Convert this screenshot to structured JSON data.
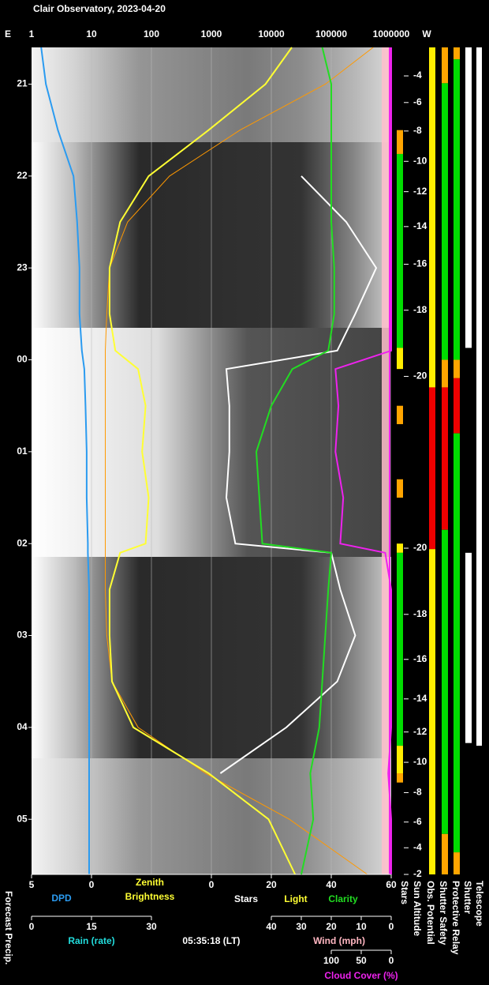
{
  "chart_data": {
    "type": "line",
    "title": "Clair Observatory, 2023-04-20",
    "edge_labels": [
      "E",
      "W"
    ],
    "time_label": "05:35:18 (LT)",
    "sun_altitude_label": "Sun Altitude",
    "precip_label": "Forecast Precip.",
    "xlim": [
      1,
      1000000
    ],
    "xticks": [
      1,
      10,
      100,
      1000,
      10000,
      100000,
      1000000
    ],
    "xlog": true,
    "grid": true,
    "ylim": [
      20.6,
      29.6
    ],
    "yticks": [
      21,
      22,
      23,
      {
        "value": 24,
        "label": "00"
      },
      {
        "value": 25,
        "label": "01"
      },
      {
        "value": 26,
        "label": "02"
      },
      {
        "value": 27,
        "label": "03"
      },
      {
        "value": 28,
        "label": "04"
      },
      {
        "value": 29,
        "label": "05"
      }
    ],
    "times": [
      20.6,
      21,
      21.5,
      22,
      22.5,
      23,
      23.5,
      23.9,
      24.1,
      24.5,
      25,
      25.5,
      26,
      26.1,
      26.5,
      27,
      27.5,
      28,
      28.5,
      29,
      29.6
    ],
    "series": [
      {
        "color": "#ff9900",
        "values": [
          500000,
          80000,
          3000,
          200,
          40,
          20,
          18,
          17,
          17,
          17,
          17,
          17,
          17,
          17,
          17,
          18,
          22,
          60,
          800,
          20000,
          400000
        ]
      },
      {
        "color": "#ffff33",
        "values": [
          22000,
          8000,
          900,
          90,
          30,
          20,
          20,
          25,
          60,
          80,
          70,
          90,
          80,
          30,
          20,
          20,
          22,
          50,
          900,
          9000,
          25000
        ]
      }
    ],
    "scales": [
      {
        "titles": [
          {
            "text": "DPD",
            "color": "#2b9bf0"
          }
        ],
        "lim": [
          5,
          0
        ],
        "ticks": [
          5,
          0
        ],
        "series": [
          {
            "color": "#2b9bf0",
            "values": [
              4.2,
              3.8,
              2.8,
              1.5,
              1.2,
              1.0,
              1.0,
              0.8,
              0.6,
              0.5,
              0.4,
              0.4,
              0.3,
              0.3,
              0.2,
              0.2,
              0.2,
              0.2,
              0.2,
              0.2,
              0.2
            ]
          }
        ]
      },
      {
        "titles": [
          {
            "text": "Zenith",
            "color": "#ffff33"
          },
          {
            "text": "Brightness",
            "color": "#ffff33"
          }
        ]
      },
      {
        "titles": [
          {
            "text": "Stars",
            "color": "#ffffff"
          },
          {
            "text": "Light",
            "color": "#ffff33"
          },
          {
            "text": "Clarity",
            "color": "#22dd22"
          }
        ],
        "lim": [
          0,
          60
        ],
        "ticks": [
          0,
          20,
          40,
          60
        ],
        "series": [
          {
            "color": "#ffffff",
            "values": [
              null,
              null,
              null,
              30,
              45,
              55,
              48,
              42,
              5,
              6,
              6,
              5,
              8,
              40,
              43,
              48,
              42,
              25,
              3,
              null,
              null
            ]
          },
          {
            "color": "#22dd22",
            "values": [
              37,
              40,
              40,
              40,
              40,
              41,
              41,
              39,
              27,
              20,
              15,
              16,
              17,
              40,
              39,
              38,
              37,
              36,
              33,
              34,
              30
            ]
          }
        ]
      },
      {
        "titles": [
          {
            "text": "Rain (rate)",
            "color": "#22dddd"
          }
        ],
        "lim": [
          0,
          30
        ],
        "ticks": [
          0,
          15,
          30
        ]
      },
      {
        "titles": [
          {
            "text": "Wind (mph)",
            "color": "#ffb6c1"
          }
        ],
        "lim": [
          40,
          0
        ],
        "ticks": [
          40,
          30,
          20,
          10,
          0
        ]
      },
      {
        "titles": [
          {
            "text": "Cloud Cover (%)",
            "color": "#ee22ee"
          }
        ],
        "lim": [
          100,
          0
        ],
        "ticks": [
          100,
          50,
          0
        ],
        "series": [
          {
            "color": "#ee22ee",
            "values": [
              0,
              0,
              0,
              0,
              0,
              0,
              0,
              0,
              93,
              88,
              93,
              80,
              85,
              10,
              0,
              0,
              0,
              0,
              5,
              0,
              0
            ]
          }
        ]
      }
    ],
    "sun_altitude": {
      "values": [
        -4,
        -6,
        -8,
        -10,
        -12,
        -14,
        -16,
        -18,
        -20,
        -20,
        -18,
        -16,
        -14,
        -12,
        -10,
        -8,
        -6,
        -4,
        -2
      ],
      "times": [
        20.91,
        21.2,
        21.51,
        21.84,
        22.17,
        22.55,
        22.96,
        23.46,
        24.18,
        26.05,
        26.77,
        27.26,
        27.69,
        28.05,
        28.38,
        28.71,
        29.03,
        29.31,
        29.6
      ]
    },
    "status_columns": [
      {
        "name": "Stars",
        "segments": [
          {
            "start": 21.5,
            "end": 21.76,
            "color": "#ffa500"
          },
          {
            "start": 21.76,
            "end": 23.87,
            "color": "#00dd00"
          },
          {
            "start": 23.87,
            "end": 24.1,
            "color": "#ffee00"
          },
          {
            "start": 24.5,
            "end": 24.7,
            "color": "#ffa500"
          },
          {
            "start": 25.3,
            "end": 25.5,
            "color": "#ffa500"
          },
          {
            "start": 26.0,
            "end": 26.1,
            "color": "#ffee00"
          },
          {
            "start": 26.1,
            "end": 28.2,
            "color": "#00dd00"
          },
          {
            "start": 28.2,
            "end": 28.5,
            "color": "#ffee00"
          },
          {
            "start": 28.5,
            "end": 28.6,
            "color": "#ffa500"
          }
        ]
      },
      {
        "name": "Obs. Potential",
        "segments": [
          {
            "start": 20.6,
            "end": 24.3,
            "color": "#ffee00"
          },
          {
            "start": 24.3,
            "end": 26.06,
            "color": "#ee0000"
          },
          {
            "start": 26.06,
            "end": 29.6,
            "color": "#ffee00"
          }
        ]
      },
      {
        "name": "Shutter Safety",
        "segments": [
          {
            "start": 20.6,
            "end": 20.99,
            "color": "#ffa500"
          },
          {
            "start": 20.99,
            "end": 24.0,
            "color": "#00dd00"
          },
          {
            "start": 24.0,
            "end": 24.3,
            "color": "#ffa500"
          },
          {
            "start": 24.3,
            "end": 25.85,
            "color": "#ee0000"
          },
          {
            "start": 25.85,
            "end": 29.16,
            "color": "#00dd00"
          },
          {
            "start": 29.16,
            "end": 29.6,
            "color": "#ffa500"
          }
        ]
      },
      {
        "name": "Protective Relay",
        "segments": [
          {
            "start": 20.6,
            "end": 20.73,
            "color": "#ffa500"
          },
          {
            "start": 20.73,
            "end": 24.0,
            "color": "#00dd00"
          },
          {
            "start": 24.0,
            "end": 24.2,
            "color": "#ffa500"
          },
          {
            "start": 24.2,
            "end": 24.8,
            "color": "#ee0000"
          },
          {
            "start": 24.8,
            "end": 29.36,
            "color": "#00dd00"
          },
          {
            "start": 29.36,
            "end": 29.6,
            "color": "#ffa500"
          }
        ]
      },
      {
        "name": "Shutter",
        "segments": [
          {
            "start": 20.6,
            "end": 23.87,
            "color": "#ffffff"
          },
          {
            "start": 26.1,
            "end": 28.17,
            "color": "#ffffff"
          }
        ]
      },
      {
        "name": "Telescope",
        "segments": [
          {
            "start": 20.6,
            "end": 28.2,
            "color": "#ffffff"
          }
        ]
      }
    ]
  }
}
